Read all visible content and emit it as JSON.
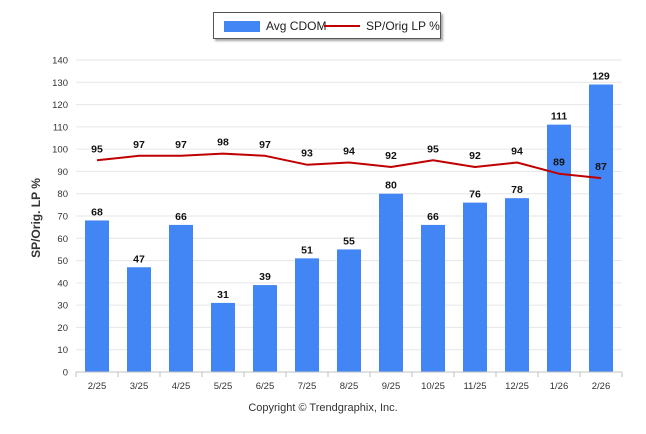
{
  "chart_data": {
    "type": "bar",
    "categories": [
      "2/25",
      "3/25",
      "4/25",
      "5/25",
      "6/25",
      "7/25",
      "8/25",
      "9/25",
      "10/25",
      "11/25",
      "12/25",
      "1/26",
      "2/26"
    ],
    "series": [
      {
        "name": "Avg CDOM",
        "kind": "bar",
        "color": "#4285f4",
        "values": [
          68,
          47,
          66,
          31,
          39,
          51,
          55,
          80,
          66,
          76,
          78,
          111,
          129
        ]
      },
      {
        "name": "SP/Orig LP %",
        "kind": "line",
        "color": "#c00000",
        "values": [
          95,
          97,
          97,
          98,
          97,
          93,
          94,
          92,
          95,
          92,
          94,
          89,
          87
        ]
      }
    ],
    "ylabel": "SP/Orig. LP %",
    "xlabel": "",
    "ylim": [
      0,
      140
    ],
    "yticks": [
      0,
      10,
      20,
      30,
      40,
      50,
      60,
      70,
      80,
      90,
      100,
      110,
      120,
      130,
      140
    ],
    "legend_position": "top-center",
    "grid": true
  },
  "legend": {
    "bar_label": "Avg CDOM",
    "line_label": "SP/Orig LP %"
  },
  "footer": {
    "copyright": "Copyright © Trendgraphix, Inc."
  }
}
